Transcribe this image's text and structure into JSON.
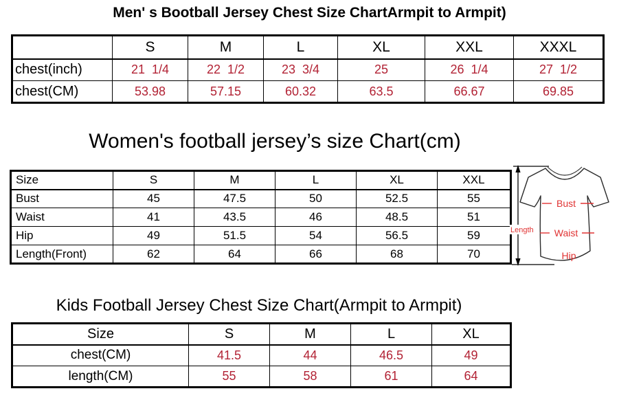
{
  "colors": {
    "value_red": "#B22234",
    "diagram_red": "#E03232",
    "background": "#FFFFFF",
    "text_black": "#000000"
  },
  "chart_data": [
    {
      "type": "table",
      "title": "Men' s Bootball Jersey Chest Size ChartArmpit to Armpit)",
      "columns": [
        "",
        "S",
        "M",
        "L",
        "XL",
        "XXL",
        "XXXL"
      ],
      "rows": [
        [
          "chest(inch)",
          "21  1/4",
          "22  1/2",
          "23  3/4",
          "25",
          "26  1/4",
          "27  1/2"
        ],
        [
          "chest(CM)",
          "53.98",
          "57.15",
          "60.32",
          "63.5",
          "66.67",
          "69.85"
        ]
      ],
      "value_text_color": "#B22234",
      "layout": "row labels at left, size columns, thick outer border"
    },
    {
      "type": "table",
      "title": "Women's football jersey’s size Chart(cm)",
      "columns": [
        "Size",
        "S",
        "M",
        "L",
        "XL",
        "XXL"
      ],
      "rows": [
        [
          "Bust",
          "45",
          "47.5",
          "50",
          "52.5",
          "55"
        ],
        [
          "Waist",
          "41",
          "43.5",
          "46",
          "48.5",
          "51"
        ],
        [
          "Hip",
          "49",
          "51.5",
          "54",
          "56.5",
          "59"
        ],
        [
          "Length(Front)",
          "62",
          "64",
          "66",
          "68",
          "70"
        ]
      ],
      "value_text_color": "#000000",
      "layout": "row labels at left, size columns, t-shirt measurement diagram at right"
    },
    {
      "type": "table",
      "title": "Kids Football Jersey Chest Size Chart(Armpit to Armpit)",
      "columns": [
        "Size",
        "S",
        "M",
        "L",
        "XL"
      ],
      "rows": [
        [
          "chest(CM)",
          "41.5",
          "44",
          "46.5",
          "49"
        ],
        [
          "length(CM)",
          "55",
          "58",
          "61",
          "64"
        ]
      ],
      "value_text_color": "#B22234",
      "layout": "centered row labels, size columns, thick outer border"
    }
  ],
  "diagram": {
    "labels": {
      "length": "Length",
      "bust": "Bust",
      "waist": "Waist",
      "hip": "Hip"
    },
    "description": "t-shirt outline with vertical length arrow and red measurement lines"
  }
}
